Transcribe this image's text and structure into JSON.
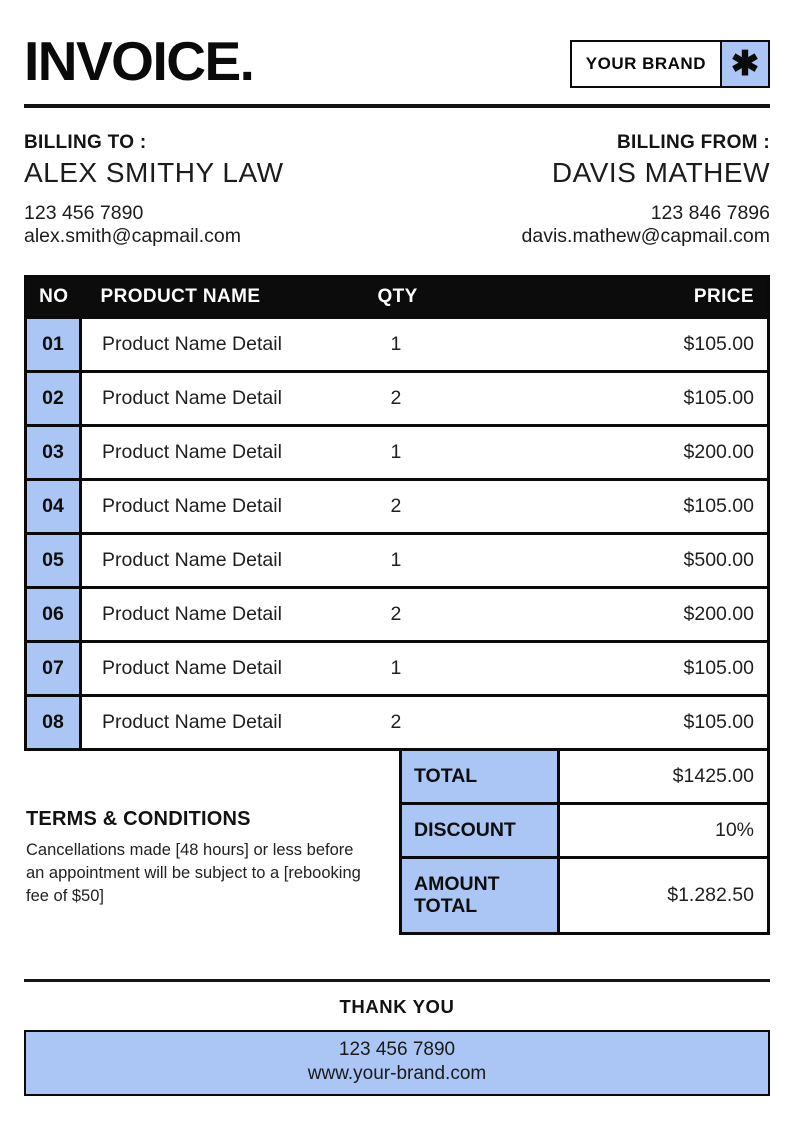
{
  "header": {
    "title": "INVOICE.",
    "brand_label": "YOUR BRAND",
    "brand_icon_glyph": "✱"
  },
  "billing_to": {
    "label": "BILLING TO :",
    "name": "ALEX SMITHY LAW",
    "phone": "123 456 7890",
    "email": "alex.smith@capmail.com"
  },
  "billing_from": {
    "label": "BILLING FROM :",
    "name": "DAVIS MATHEW",
    "phone": "123 846 7896",
    "email": "davis.mathew@capmail.com"
  },
  "table": {
    "headers": [
      "NO",
      "PRODUCT NAME",
      "QTY",
      "PRICE"
    ],
    "rows": [
      {
        "no": "01",
        "product": "Product Name Detail",
        "qty": "1",
        "price": "$105.00"
      },
      {
        "no": "02",
        "product": "Product Name Detail",
        "qty": "2",
        "price": "$105.00"
      },
      {
        "no": "03",
        "product": "Product Name Detail",
        "qty": "1",
        "price": "$200.00"
      },
      {
        "no": "04",
        "product": "Product Name Detail",
        "qty": "2",
        "price": "$105.00"
      },
      {
        "no": "05",
        "product": "Product Name Detail",
        "qty": "1",
        "price": "$500.00"
      },
      {
        "no": "06",
        "product": "Product Name Detail",
        "qty": "2",
        "price": "$200.00"
      },
      {
        "no": "07",
        "product": "Product Name Detail",
        "qty": "1",
        "price": "$105.00"
      },
      {
        "no": "08",
        "product": "Product Name Detail",
        "qty": "2",
        "price": "$105.00"
      }
    ]
  },
  "totals": [
    {
      "label": "TOTAL",
      "value": "$1425.00"
    },
    {
      "label": "DISCOUNT",
      "value": "10%"
    },
    {
      "label": "AMOUNT TOTAL",
      "value": "$1.282.50"
    }
  ],
  "terms": {
    "heading": "TERMS & CONDITIONS",
    "body": "Cancellations made [48 hours] or less before an appointment will be subject to a [rebooking fee of $50]"
  },
  "footer": {
    "thank_you": "THANK YOU",
    "phone": "123 456 7890",
    "website": "www.your-brand.com"
  },
  "colors": {
    "accent_blue": "#abc6f4",
    "ink_black": "#0a0a0a"
  }
}
